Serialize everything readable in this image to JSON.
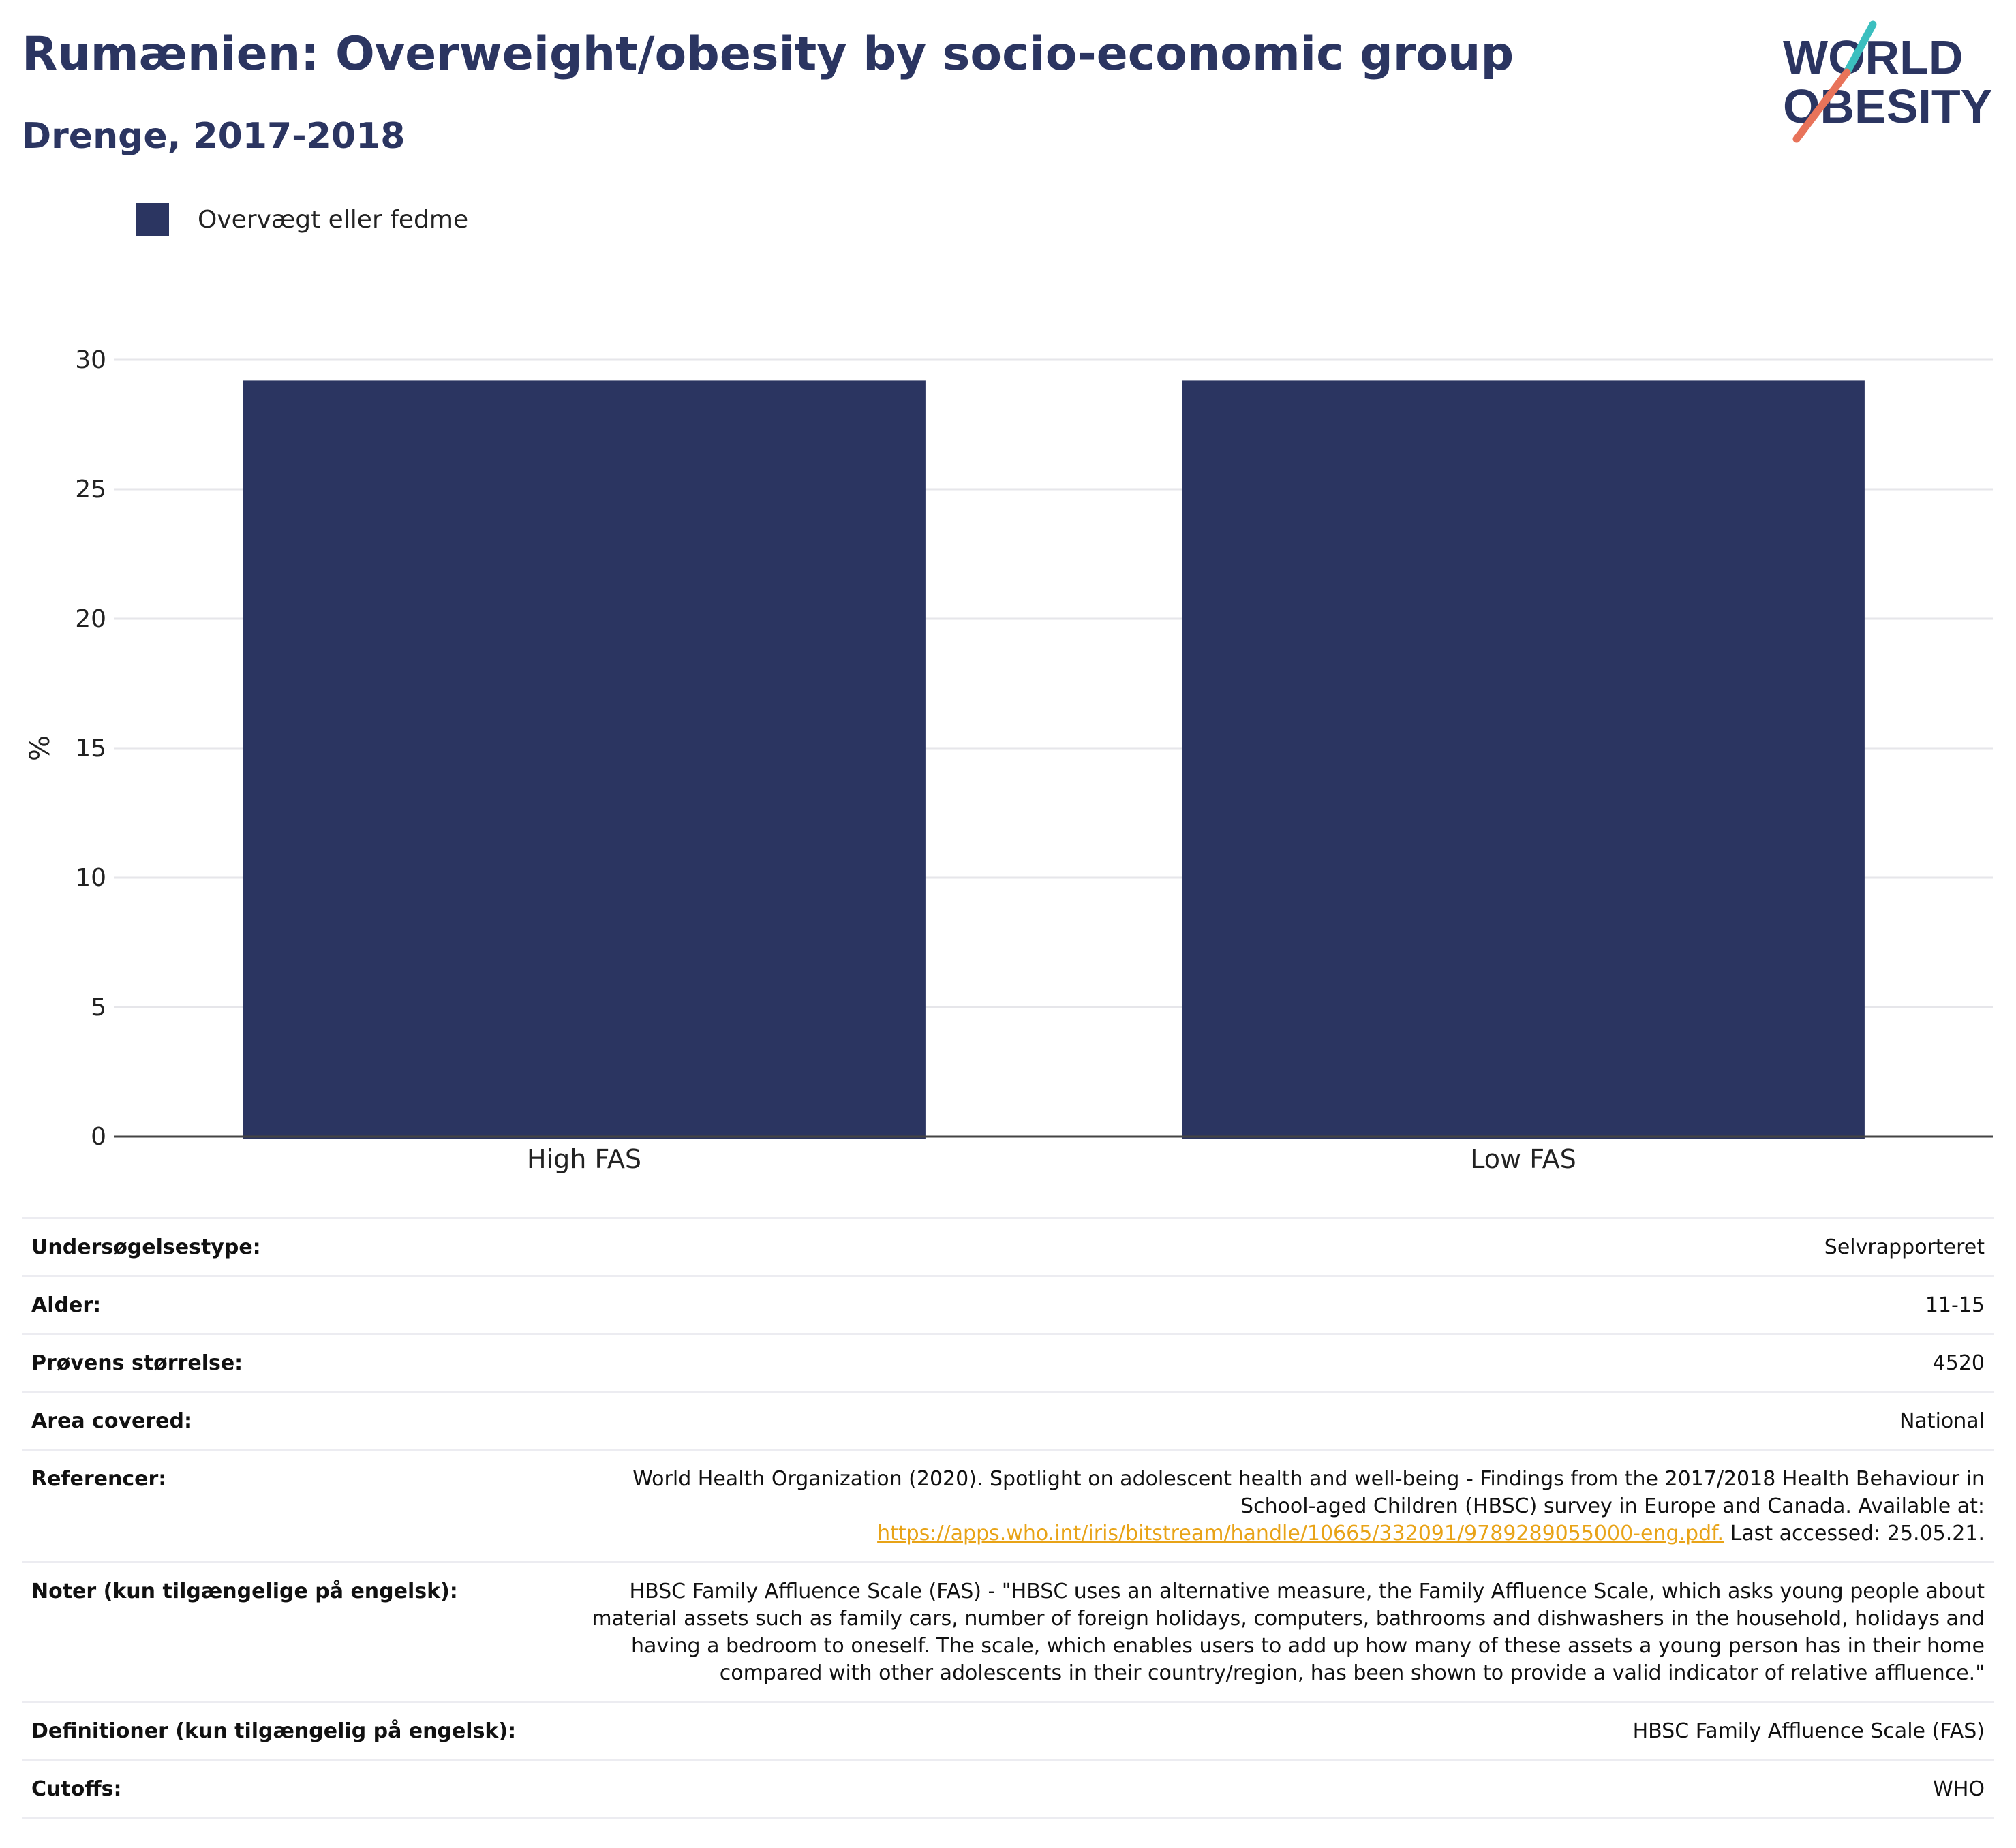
{
  "header": {
    "title": "Rumænien: Overweight/obesity by socio-economic group",
    "subtitle": "Drenge, 2017-2018"
  },
  "logo": {
    "line1": "WORLD",
    "line2": "OBESITY",
    "colors": {
      "text": "#2b3561",
      "slash_top": "#3bbfbf",
      "slash_bottom": "#e8735a"
    }
  },
  "colors": {
    "bar": "#2b3561",
    "grid": "#e6e6ea",
    "axis": "#444444"
  },
  "legend": {
    "label": "Overvægt eller fedme"
  },
  "chart_data": {
    "type": "bar",
    "title": "Rumænien: Overweight/obesity by socio-economic group",
    "subtitle": "Drenge, 2017-2018",
    "categories": [
      "High FAS",
      "Low FAS"
    ],
    "series": [
      {
        "name": "Overvægt eller fedme",
        "values": [
          29.2,
          29.2
        ]
      }
    ],
    "ylabel": "%",
    "xlabel": "",
    "ylim": [
      0,
      30
    ],
    "yticks": [
      0,
      5,
      10,
      15,
      20,
      25,
      30
    ],
    "grid": true,
    "legend_position": "top-left"
  },
  "info": {
    "survey_type": {
      "label": "Undersøgelsestype:",
      "value": "Selvrapporteret"
    },
    "age": {
      "label": "Alder:",
      "value": "11-15"
    },
    "sample_size": {
      "label": "Prøvens størrelse:",
      "value": "4520"
    },
    "area": {
      "label": "Area covered:",
      "value": "National"
    },
    "references": {
      "label": "Referencer:",
      "text_line1": "World Health Organization (2020). Spotlight on adolescent health and well-being - Findings from the 2017/2018 Health Behaviour in",
      "text_line2": "School-aged Children (HBSC) survey in Europe and Canada. Available at:",
      "link": "https://apps.who.int/iris/bitstream/handle/10665/332091/9789289055000-eng.pdf.",
      "suffix": " Last accessed: 25.05.21."
    },
    "notes": {
      "label": "Noter (kun tilgængelige på engelsk):",
      "line1": "HBSC Family Affluence Scale (FAS) - \"HBSC uses an alternative measure, the Family Affluence Scale, which asks young people about",
      "line2": "material assets such as family cars, number of foreign holidays, computers, bathrooms and dishwashers in the household, holidays and",
      "line3": "having a bedroom to oneself. The scale, which enables users to add up how many of these assets a young person has in their home",
      "line4": "compared with other adolescents in their country/region, has been shown to provide a valid indicator of relative affluence.\""
    },
    "definitions": {
      "label": "Definitioner (kun tilgængelig på engelsk):",
      "value": "HBSC Family Affluence Scale (FAS)"
    },
    "cutoffs": {
      "label": "Cutoffs:",
      "value": "WHO"
    }
  }
}
